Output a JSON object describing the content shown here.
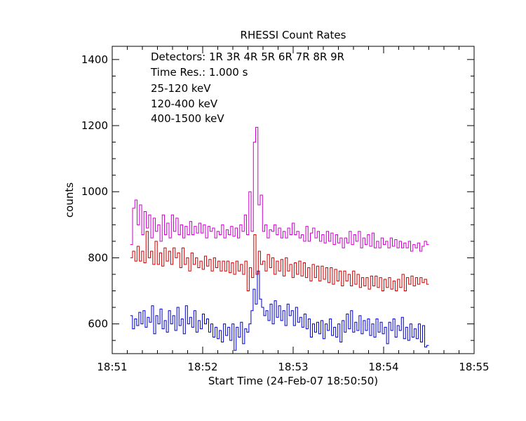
{
  "chart_data": {
    "type": "line",
    "title": "RHESSI Count Rates",
    "xlabel": "Start Time (24-Feb-07 18:50:50)",
    "ylabel": "counts",
    "xlim": [
      "18:51",
      "18:55"
    ],
    "ylim": [
      510,
      1440
    ],
    "x_ticks": [
      "18:51",
      "18:52",
      "18:53",
      "18:54",
      "18:55"
    ],
    "y_ticks": [
      600,
      800,
      1000,
      1200,
      1400
    ],
    "grid": false,
    "annotations": [
      "Detectors:  1R 3R 4R 5R 6R 7R 8R 9R",
      "Time Res.: 1.000 s"
    ],
    "series": [
      {
        "name": "25-120 keV",
        "color": "#0000cc",
        "time_start": "18:51:12",
        "time_end": "18:54:30",
        "values": [
          625,
          585,
          615,
          595,
          635,
          600,
          640,
          590,
          620,
          605,
          655,
          570,
          625,
          600,
          645,
          585,
          610,
          575,
          640,
          600,
          625,
          580,
          650,
          595,
          615,
          570,
          655,
          600,
          620,
          590,
          640,
          575,
          610,
          585,
          630,
          600,
          615,
          575,
          600,
          560,
          590,
          555,
          580,
          545,
          600,
          565,
          590,
          550,
          600,
          520,
          590,
          560,
          605,
          540,
          585,
          575,
          600,
          640,
          705,
          660,
          760,
          675,
          650,
          625,
          640,
          610,
          660,
          600,
          670,
          620,
          655,
          610,
          640,
          595,
          660,
          625,
          640,
          595,
          650,
          605,
          620,
          590,
          630,
          585,
          615,
          560,
          600,
          575,
          605,
          570,
          610,
          555,
          600,
          580,
          615,
          565,
          590,
          560,
          600,
          545,
          610,
          575,
          630,
          585,
          640,
          575,
          605,
          580,
          625,
          570,
          610,
          580,
          615,
          565,
          600,
          560,
          615,
          575,
          605,
          570,
          590,
          540,
          605,
          580,
          615,
          560,
          595,
          580,
          620,
          555,
          590,
          550,
          600,
          560,
          585,
          555,
          600,
          545,
          595,
          530,
          535
        ]
      },
      {
        "name": "120-400 keV",
        "color": "#cc00cc",
        "time_start": "18:51:12",
        "time_end": "18:54:30",
        "values": [
          840,
          950,
          975,
          900,
          960,
          870,
          940,
          890,
          930,
          860,
          920,
          880,
          900,
          850,
          930,
          870,
          905,
          860,
          930,
          880,
          920,
          870,
          900,
          860,
          895,
          870,
          910,
          870,
          895,
          875,
          905,
          875,
          900,
          860,
          895,
          880,
          890,
          860,
          880,
          870,
          900,
          860,
          885,
          870,
          895,
          865,
          890,
          860,
          900,
          880,
          930,
          870,
          1000,
          880,
          1150,
          1195,
          960,
          990,
          880,
          900,
          860,
          885,
          880,
          900,
          870,
          890,
          860,
          880,
          860,
          890,
          870,
          905,
          870,
          880,
          860,
          870,
          850,
          895,
          850,
          875,
          890,
          860,
          880,
          850,
          870,
          845,
          880,
          850,
          875,
          840,
          870,
          845,
          860,
          830,
          860,
          845,
          880,
          840,
          870,
          850,
          880,
          830,
          860,
          840,
          870,
          835,
          875,
          830,
          850,
          830,
          860,
          840,
          850,
          830,
          860,
          835,
          855,
          830,
          850,
          830,
          845,
          830,
          850,
          820,
          840,
          830,
          845,
          820,
          835,
          850,
          840
        ]
      },
      {
        "name": "400-1500 keV",
        "color": "#cc0000",
        "time_start": "18:51:12",
        "time_end": "18:54:30",
        "values": [
          800,
          820,
          790,
          835,
          790,
          820,
          785,
          880,
          800,
          820,
          780,
          850,
          780,
          815,
          775,
          830,
          790,
          820,
          780,
          830,
          800,
          815,
          770,
          830,
          780,
          800,
          760,
          815,
          780,
          800,
          770,
          790,
          765,
          805,
          775,
          795,
          760,
          800,
          770,
          790,
          760,
          790,
          760,
          790,
          755,
          785,
          750,
          790,
          760,
          780,
          750,
          790,
          700,
          770,
          740,
          870,
          750,
          820,
          780,
          790,
          760,
          810,
          770,
          800,
          750,
          790,
          760,
          795,
          745,
          800,
          760,
          780,
          740,
          785,
          750,
          790,
          745,
          785,
          740,
          770,
          730,
          780,
          740,
          775,
          730,
          775,
          735,
          770,
          725,
          770,
          720,
          765,
          730,
          760,
          715,
          760,
          730,
          750,
          715,
          760,
          720,
          750,
          710,
          740,
          715,
          740,
          705,
          745,
          715,
          745,
          710,
          740,
          700,
          735,
          710,
          740,
          705,
          730,
          700,
          735,
          710,
          750,
          700,
          740,
          720,
          745,
          715,
          740,
          720,
          740,
          725,
          735,
          720
        ]
      }
    ]
  }
}
